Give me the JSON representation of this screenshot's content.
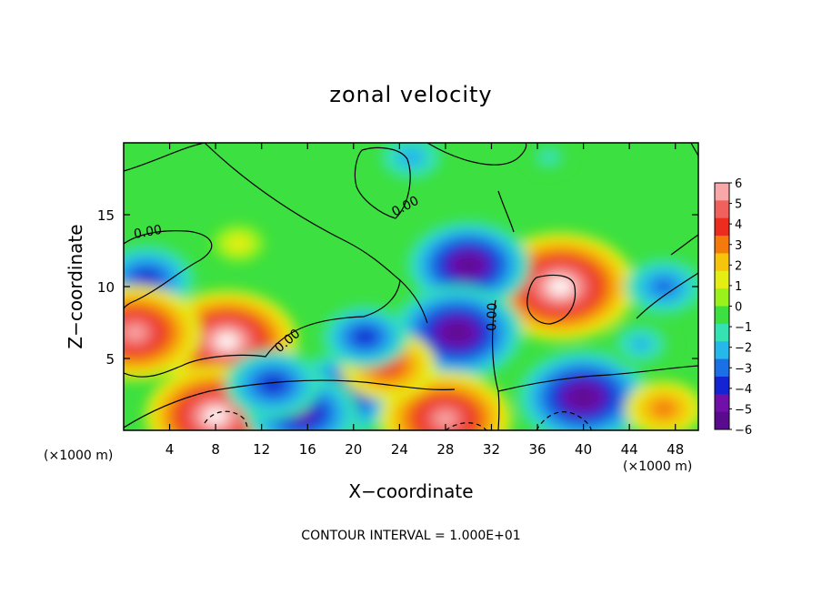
{
  "chart_data": {
    "type": "heatmap",
    "title": "zonal velocity",
    "xlabel": "X−coordinate",
    "ylabel": "Z−coordinate",
    "x_unit_left": "(×1000 m)",
    "x_unit_right": "(×1000 m)",
    "footer": "CONTOUR INTERVAL = 1.000E+01",
    "xlim": [
      0,
      50
    ],
    "ylim": [
      0,
      20
    ],
    "x_ticks": [
      4,
      8,
      12,
      16,
      20,
      24,
      28,
      32,
      36,
      40,
      44,
      48
    ],
    "x_tick_labels": [
      "4",
      "8",
      "12",
      "16",
      "20",
      "24",
      "28",
      "32",
      "36",
      "40",
      "44",
      "48"
    ],
    "y_ticks": [
      5,
      10,
      15
    ],
    "y_tick_labels": [
      "5",
      "10",
      "15"
    ],
    "colorbar": {
      "range": [
        -6,
        6
      ],
      "ticks": [
        6,
        5,
        4,
        3,
        2,
        1,
        0,
        -1,
        -2,
        -3,
        -4,
        -5,
        -6
      ],
      "tick_labels": [
        "6",
        "5",
        "4",
        "3",
        "2",
        "1",
        "0",
        "−1",
        "−2",
        "−3",
        "−4",
        "−5",
        "−6"
      ],
      "colors": [
        "#f8a8a8",
        "#f0605c",
        "#ec2c1e",
        "#f47a0c",
        "#f6c40a",
        "#e4ee14",
        "#9af21c",
        "#3ce040",
        "#34e2b2",
        "#26b8ea",
        "#1a70e4",
        "#1424d2",
        "#7010a8",
        "#5a0a8c"
      ],
      "over_color": "#ffffff",
      "under_color": "#ffffff"
    },
    "contour_labels": [
      "0.00",
      "0.00",
      "0.00",
      "0.00"
    ],
    "features": [
      {
        "x": 38,
        "z": 10,
        "value": 7,
        "sign": "positive"
      },
      {
        "x": 30,
        "z": 11.5,
        "value": -5.5,
        "sign": "negative"
      },
      {
        "x": 9,
        "z": 6.2,
        "value": 6.5,
        "sign": "positive"
      },
      {
        "x": 29,
        "z": 6.8,
        "value": -6,
        "sign": "negative"
      },
      {
        "x": 2,
        "z": 10.5,
        "value": -4,
        "sign": "negative"
      },
      {
        "x": 1,
        "z": 6.8,
        "value": 6,
        "sign": "positive"
      },
      {
        "x": 8,
        "z": 1,
        "value": 6.5,
        "sign": "positive"
      },
      {
        "x": 19,
        "z": 2.5,
        "value": -5,
        "sign": "negative"
      },
      {
        "x": 28,
        "z": 0.8,
        "value": 6,
        "sign": "positive"
      },
      {
        "x": 40,
        "z": 2.3,
        "value": -6,
        "sign": "negative"
      },
      {
        "x": 15.5,
        "z": 1.2,
        "value": -5,
        "sign": "negative"
      },
      {
        "x": 23,
        "z": 4.5,
        "value": 4,
        "sign": "positive"
      },
      {
        "x": 21,
        "z": 6.5,
        "value": -3.5,
        "sign": "negative"
      },
      {
        "x": 10,
        "z": 13,
        "value": 1.5,
        "sign": "positive"
      },
      {
        "x": 47,
        "z": 10,
        "value": -3,
        "sign": "negative"
      },
      {
        "x": 47,
        "z": 1.5,
        "value": 3,
        "sign": "positive"
      },
      {
        "x": 13,
        "z": 3.2,
        "value": -4,
        "sign": "negative"
      },
      {
        "x": 25,
        "z": 19,
        "value": -2,
        "sign": "negative"
      },
      {
        "x": 37,
        "z": 19,
        "value": -1.2,
        "sign": "negative"
      },
      {
        "x": 45,
        "z": 6,
        "value": -2.5,
        "sign": "negative"
      }
    ],
    "grid": false,
    "legend": "right"
  }
}
